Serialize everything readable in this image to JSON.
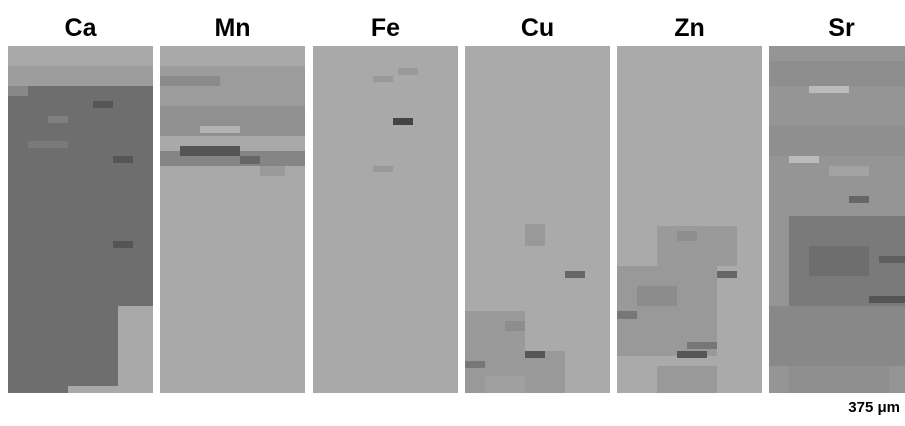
{
  "panels": [
    {
      "label": "Ca"
    },
    {
      "label": "Mn"
    },
    {
      "label": "Fe"
    },
    {
      "label": "Cu"
    },
    {
      "label": "Zn"
    },
    {
      "label": "Sr"
    }
  ],
  "scale_bar": {
    "label": "375 μm"
  }
}
